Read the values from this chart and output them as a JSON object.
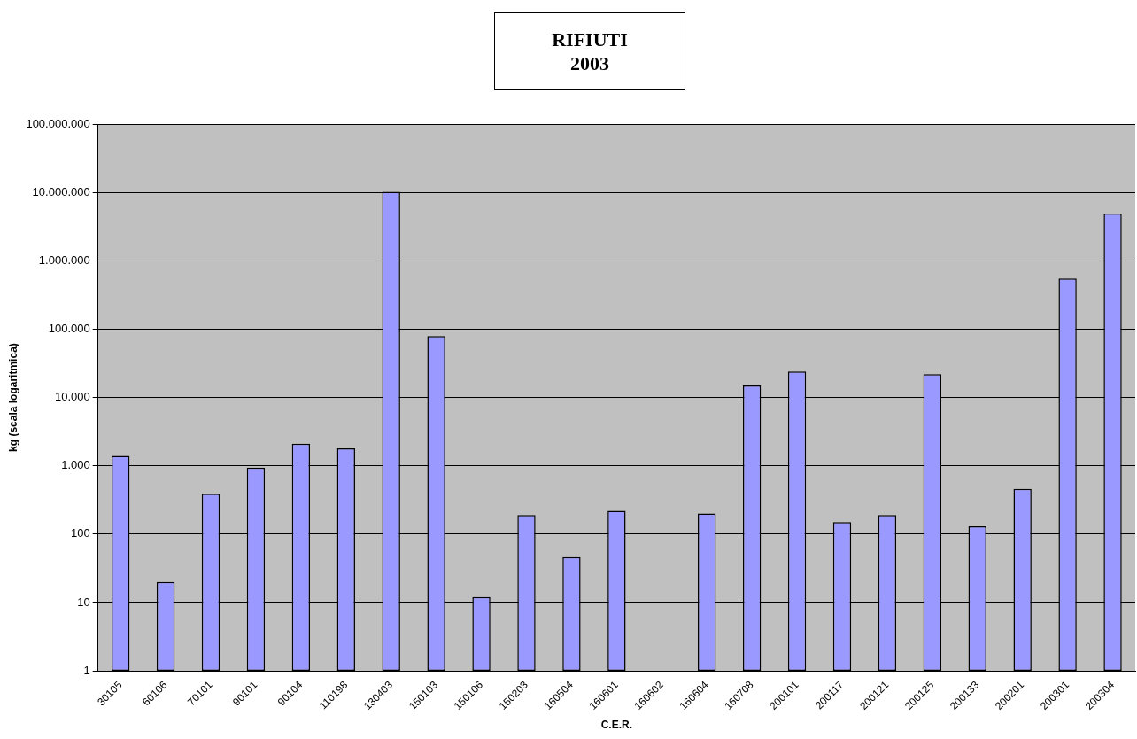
{
  "chart_data": {
    "type": "bar",
    "title": "RIFIUTI\n2003",
    "xlabel": "C.E.R.",
    "ylabel": "kg (scala logaritmica)",
    "categories": [
      "30105",
      "60106",
      "70101",
      "90101",
      "90104",
      "110198",
      "130403",
      "150103",
      "150106",
      "150203",
      "160504",
      "160601",
      "160602",
      "160604",
      "160708",
      "200101",
      "200117",
      "200121",
      "200125",
      "200133",
      "200201",
      "200301",
      "200304"
    ],
    "values": [
      1400,
      20,
      390,
      940,
      2100,
      1800,
      10200000,
      79000,
      12,
      190,
      46,
      220,
      null,
      200,
      15000,
      24000,
      150,
      190,
      22000,
      130,
      460,
      550000,
      4900000
    ],
    "color": "#9999ff",
    "log": "y",
    "ylim": [
      1,
      100000000
    ],
    "yticks": [
      1,
      10,
      100,
      {
        "value": 1000,
        "label": "1.000"
      },
      {
        "value": 10000,
        "label": "10.000"
      },
      {
        "value": 100000,
        "label": "100.000"
      },
      {
        "value": 1000000,
        "label": "1.000.000"
      },
      {
        "value": 10000000,
        "label": "10.000.000"
      },
      {
        "value": 100000000,
        "label": "100.000.000"
      }
    ],
    "grid": "y"
  }
}
